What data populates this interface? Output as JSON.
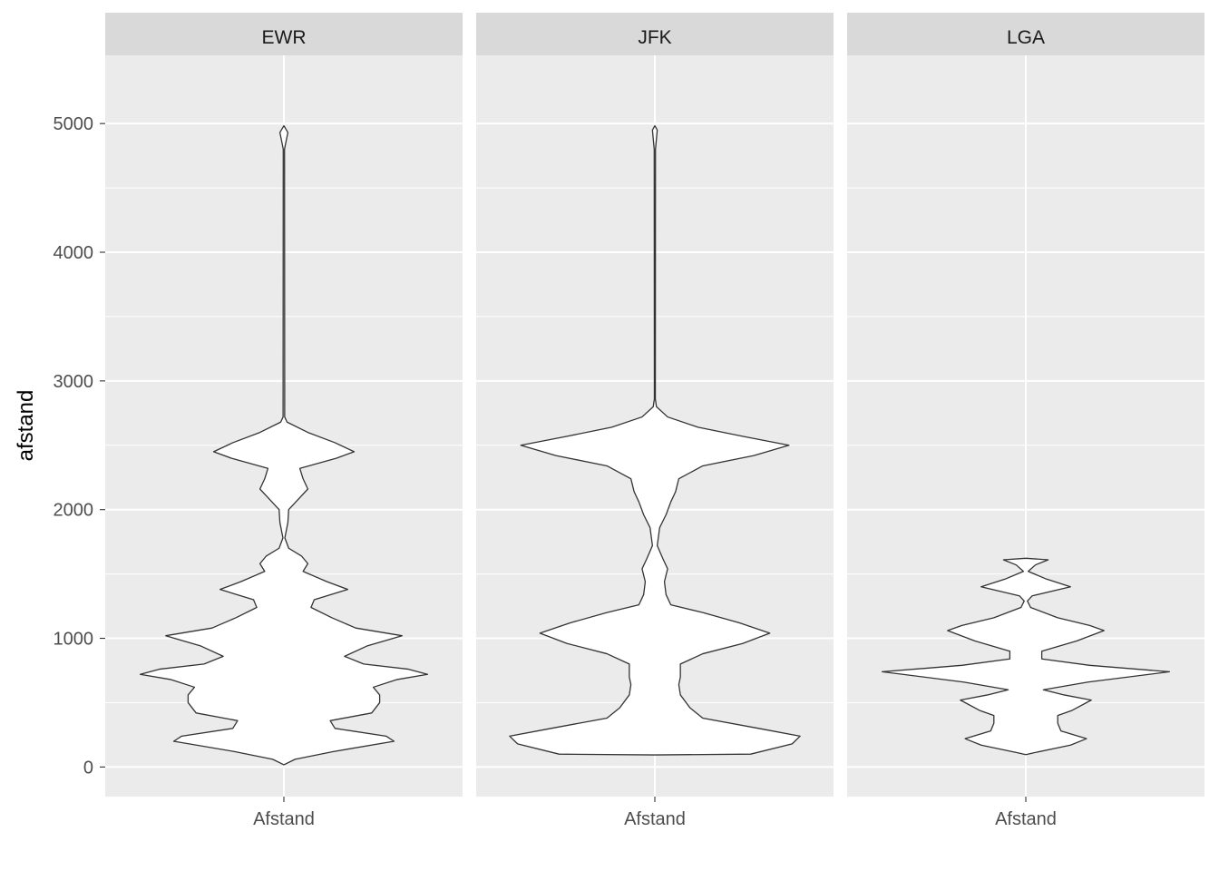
{
  "chart_data": {
    "type": "violin",
    "ylabel": "afstand",
    "xlabel": "",
    "ylim": [
      -230,
      5530
    ],
    "y_ticks": [
      "0",
      "1000",
      "2000",
      "3000",
      "4000",
      "5000"
    ],
    "y_tick_values": [
      0,
      1000,
      2000,
      3000,
      4000,
      5000
    ],
    "grid": true,
    "colors": {
      "panel_bg": "#ebebeb",
      "strip_bg": "#d9d9d9",
      "grid": "#ffffff",
      "violin_fill": "#ffffff",
      "violin_stroke": "#333333"
    },
    "facets": [
      {
        "name": "EWR",
        "category": "Afstand",
        "profile": [
          [
            17,
            0.0
          ],
          [
            60,
            0.07
          ],
          [
            120,
            0.31
          ],
          [
            200,
            0.69
          ],
          [
            240,
            0.64
          ],
          [
            300,
            0.32
          ],
          [
            360,
            0.29
          ],
          [
            420,
            0.55
          ],
          [
            500,
            0.6
          ],
          [
            560,
            0.6
          ],
          [
            620,
            0.56
          ],
          [
            680,
            0.71
          ],
          [
            720,
            0.9
          ],
          [
            760,
            0.78
          ],
          [
            800,
            0.5
          ],
          [
            860,
            0.38
          ],
          [
            940,
            0.52
          ],
          [
            1020,
            0.74
          ],
          [
            1080,
            0.45
          ],
          [
            1160,
            0.3
          ],
          [
            1240,
            0.17
          ],
          [
            1300,
            0.19
          ],
          [
            1380,
            0.4
          ],
          [
            1440,
            0.27
          ],
          [
            1520,
            0.12
          ],
          [
            1580,
            0.15
          ],
          [
            1640,
            0.11
          ],
          [
            1700,
            0.03
          ],
          [
            1780,
            0.006
          ],
          [
            1900,
            0.025
          ],
          [
            2000,
            0.03
          ],
          [
            2080,
            0.09
          ],
          [
            2160,
            0.15
          ],
          [
            2240,
            0.12
          ],
          [
            2320,
            0.1
          ],
          [
            2400,
            0.33
          ],
          [
            2450,
            0.44
          ],
          [
            2520,
            0.32
          ],
          [
            2600,
            0.15
          ],
          [
            2680,
            0.02
          ],
          [
            2720,
            0.005
          ],
          [
            4800,
            0.004
          ],
          [
            4870,
            0.015
          ],
          [
            4930,
            0.025
          ],
          [
            4983,
            0.0
          ]
        ]
      },
      {
        "name": "JFK",
        "category": "Afstand",
        "profile": [
          [
            94,
            0.0
          ],
          [
            100,
            0.6
          ],
          [
            180,
            0.86
          ],
          [
            240,
            0.91
          ],
          [
            300,
            0.65
          ],
          [
            380,
            0.3
          ],
          [
            460,
            0.22
          ],
          [
            560,
            0.16
          ],
          [
            640,
            0.15
          ],
          [
            700,
            0.16
          ],
          [
            800,
            0.16
          ],
          [
            880,
            0.3
          ],
          [
            960,
            0.55
          ],
          [
            1040,
            0.72
          ],
          [
            1120,
            0.53
          ],
          [
            1200,
            0.3
          ],
          [
            1260,
            0.1
          ],
          [
            1340,
            0.07
          ],
          [
            1440,
            0.06
          ],
          [
            1540,
            0.08
          ],
          [
            1620,
            0.05
          ],
          [
            1720,
            0.015
          ],
          [
            1860,
            0.03
          ],
          [
            1960,
            0.07
          ],
          [
            2060,
            0.1
          ],
          [
            2140,
            0.13
          ],
          [
            2240,
            0.15
          ],
          [
            2340,
            0.3
          ],
          [
            2420,
            0.62
          ],
          [
            2500,
            0.84
          ],
          [
            2570,
            0.55
          ],
          [
            2640,
            0.27
          ],
          [
            2720,
            0.08
          ],
          [
            2800,
            0.01
          ],
          [
            2860,
            0.003
          ],
          [
            4800,
            0.004
          ],
          [
            4880,
            0.01
          ],
          [
            4950,
            0.015
          ],
          [
            4983,
            0.0
          ]
        ]
      },
      {
        "name": "LGA",
        "category": "Afstand",
        "profile": [
          [
            96,
            0.0
          ],
          [
            110,
            0.05
          ],
          [
            170,
            0.28
          ],
          [
            220,
            0.38
          ],
          [
            280,
            0.22
          ],
          [
            340,
            0.2
          ],
          [
            400,
            0.2
          ],
          [
            440,
            0.29
          ],
          [
            520,
            0.41
          ],
          [
            560,
            0.24
          ],
          [
            600,
            0.11
          ],
          [
            660,
            0.39
          ],
          [
            740,
            0.9
          ],
          [
            790,
            0.4
          ],
          [
            840,
            0.1
          ],
          [
            900,
            0.1
          ],
          [
            980,
            0.32
          ],
          [
            1060,
            0.49
          ],
          [
            1100,
            0.4
          ],
          [
            1160,
            0.2
          ],
          [
            1240,
            0.03
          ],
          [
            1290,
            0.01
          ],
          [
            1330,
            0.04
          ],
          [
            1400,
            0.28
          ],
          [
            1460,
            0.13
          ],
          [
            1520,
            0.015
          ],
          [
            1570,
            0.06
          ],
          [
            1610,
            0.14
          ],
          [
            1622,
            0.0
          ]
        ]
      }
    ]
  }
}
